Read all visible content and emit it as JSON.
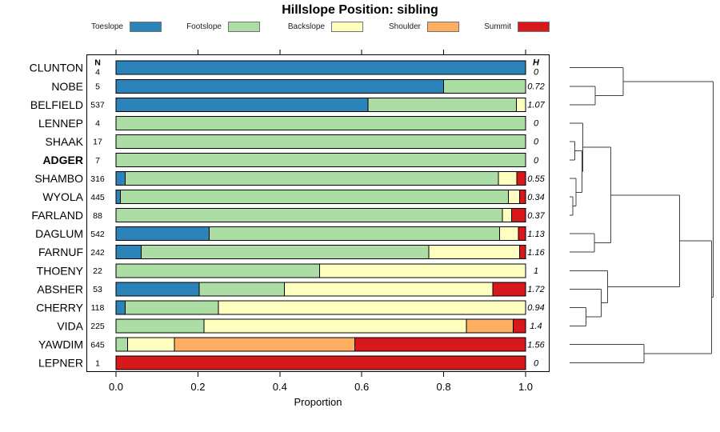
{
  "title": "Hillslope Position: sibling",
  "legend": {
    "items": [
      {
        "label": "Toeslope",
        "color": "#2B83BA"
      },
      {
        "label": "Footslope",
        "color": "#ABDDA4"
      },
      {
        "label": "Backslope",
        "color": "#FFFFBF"
      },
      {
        "label": "Shoulder",
        "color": "#FDAE61"
      },
      {
        "label": "Summit",
        "color": "#D7191C"
      }
    ]
  },
  "columns": {
    "n_header": "N",
    "h_header": "H"
  },
  "axis": {
    "xlabel": "Proportion",
    "ticks": [
      {
        "value": 0.0,
        "label": "0.0"
      },
      {
        "value": 0.2,
        "label": "0.2"
      },
      {
        "value": 0.4,
        "label": "0.4"
      },
      {
        "value": 0.6,
        "label": "0.6"
      },
      {
        "value": 0.8,
        "label": "0.8"
      },
      {
        "value": 1.0,
        "label": "1.0"
      }
    ]
  },
  "chart_data": {
    "type": "bar",
    "stacked": true,
    "orientation": "horizontal",
    "title": "Hillslope Position: sibling",
    "xlabel": "Proportion",
    "xlim": [
      0,
      1
    ],
    "grid": false,
    "categories": [
      "Toeslope",
      "Footslope",
      "Backslope",
      "Shoulder",
      "Summit"
    ],
    "colors": [
      "#2B83BA",
      "#ABDDA4",
      "#FFFFBF",
      "#FDAE61",
      "#D7191C"
    ],
    "rows": [
      {
        "name": "CLUNTON",
        "n": "4",
        "h": "0",
        "bold": false,
        "values": [
          1,
          0,
          0,
          0,
          0
        ]
      },
      {
        "name": "NOBE",
        "n": "5",
        "h": "0.72",
        "bold": false,
        "values": [
          0.8,
          0.2,
          0,
          0,
          0
        ]
      },
      {
        "name": "BELFIELD",
        "n": "537",
        "h": "1.07",
        "bold": false,
        "values": [
          0.615,
          0.363,
          0.022,
          0,
          0
        ]
      },
      {
        "name": "LENNEP",
        "n": "4",
        "h": "0",
        "bold": false,
        "values": [
          0,
          1,
          0,
          0,
          0
        ]
      },
      {
        "name": "SHAAK",
        "n": "17",
        "h": "0",
        "bold": false,
        "values": [
          0,
          1,
          0,
          0,
          0
        ]
      },
      {
        "name": "ADGER",
        "n": "7",
        "h": "0",
        "bold": true,
        "values": [
          0,
          1,
          0,
          0,
          0
        ]
      },
      {
        "name": "SHAMBO",
        "n": "316",
        "h": "0.55",
        "bold": false,
        "values": [
          0.022,
          0.912,
          0.045,
          0,
          0.021
        ]
      },
      {
        "name": "WYOLA",
        "n": "445",
        "h": "0.34",
        "bold": false,
        "values": [
          0.011,
          0.947,
          0.027,
          0,
          0.015
        ]
      },
      {
        "name": "FARLAND",
        "n": "88",
        "h": "0.37",
        "bold": false,
        "values": [
          0,
          0.943,
          0.023,
          0,
          0.034
        ]
      },
      {
        "name": "DAGLUM",
        "n": "542",
        "h": "1.13",
        "bold": false,
        "values": [
          0.228,
          0.709,
          0.045,
          0,
          0.018
        ]
      },
      {
        "name": "FARNUF",
        "n": "242",
        "h": "1.16",
        "bold": false,
        "values": [
          0.062,
          0.702,
          0.221,
          0,
          0.015
        ]
      },
      {
        "name": "THOENY",
        "n": "22",
        "h": "1",
        "bold": false,
        "values": [
          0,
          0.497,
          0.503,
          0,
          0
        ]
      },
      {
        "name": "ABSHER",
        "n": "53",
        "h": "1.72",
        "bold": false,
        "values": [
          0.203,
          0.208,
          0.509,
          0,
          0.08
        ]
      },
      {
        "name": "CHERRY",
        "n": "118",
        "h": "0.94",
        "bold": false,
        "values": [
          0.022,
          0.228,
          0.75,
          0,
          0
        ]
      },
      {
        "name": "VIDA",
        "n": "225",
        "h": "1.4",
        "bold": false,
        "values": [
          0,
          0.215,
          0.64,
          0.115,
          0.03
        ]
      },
      {
        "name": "YAWDIM",
        "n": "645",
        "h": "1.56",
        "bold": false,
        "values": [
          0,
          0.028,
          0.115,
          0.44,
          0.417
        ]
      },
      {
        "name": "LEPNER",
        "n": "1",
        "h": "0",
        "bold": false,
        "values": [
          0,
          0,
          0,
          0,
          1
        ]
      }
    ],
    "dendrogram": {
      "leaf_x": 712,
      "merges": [
        {
          "id": "m1",
          "x": 744.0,
          "children": [
            "NOBE",
            "BELFIELD"
          ]
        },
        {
          "id": "m2",
          "x": 779.0,
          "children": [
            "CLUNTON",
            "m1"
          ]
        },
        {
          "id": "m3",
          "x": 718.7,
          "children": [
            "SHAAK",
            "ADGER"
          ]
        },
        {
          "id": "m4",
          "x": 716.0,
          "children": [
            "WYOLA",
            "FARLAND"
          ]
        },
        {
          "id": "m5",
          "x": 720.0,
          "children": [
            "SHAMBO",
            "m4"
          ]
        },
        {
          "id": "m6",
          "x": 727.3,
          "children": [
            "m3",
            "m5"
          ]
        },
        {
          "id": "m7",
          "x": 728.3,
          "children": [
            "LENNEP",
            "m6"
          ]
        },
        {
          "id": "m8",
          "x": 743.0,
          "children": [
            "DAGLUM",
            "FARNUF"
          ]
        },
        {
          "id": "m9",
          "x": 763.3,
          "children": [
            "m7",
            "m8"
          ]
        },
        {
          "id": "m10",
          "x": 732.7,
          "children": [
            "CHERRY",
            "VIDA"
          ]
        },
        {
          "id": "m11",
          "x": 751.7,
          "children": [
            "ABSHER",
            "m10"
          ]
        },
        {
          "id": "m12",
          "x": 759.3,
          "children": [
            "THOENY",
            "m11"
          ]
        },
        {
          "id": "m13",
          "x": 849.3,
          "children": [
            "m9",
            "m12"
          ]
        },
        {
          "id": "m14",
          "x": 805.0,
          "children": [
            "YAWDIM",
            "LEPNER"
          ]
        },
        {
          "id": "m15",
          "x": 889.3,
          "children": [
            "m13",
            "m14"
          ]
        },
        {
          "id": "m16",
          "x": 891.5,
          "children": [
            "m2",
            "m15"
          ]
        }
      ]
    }
  }
}
